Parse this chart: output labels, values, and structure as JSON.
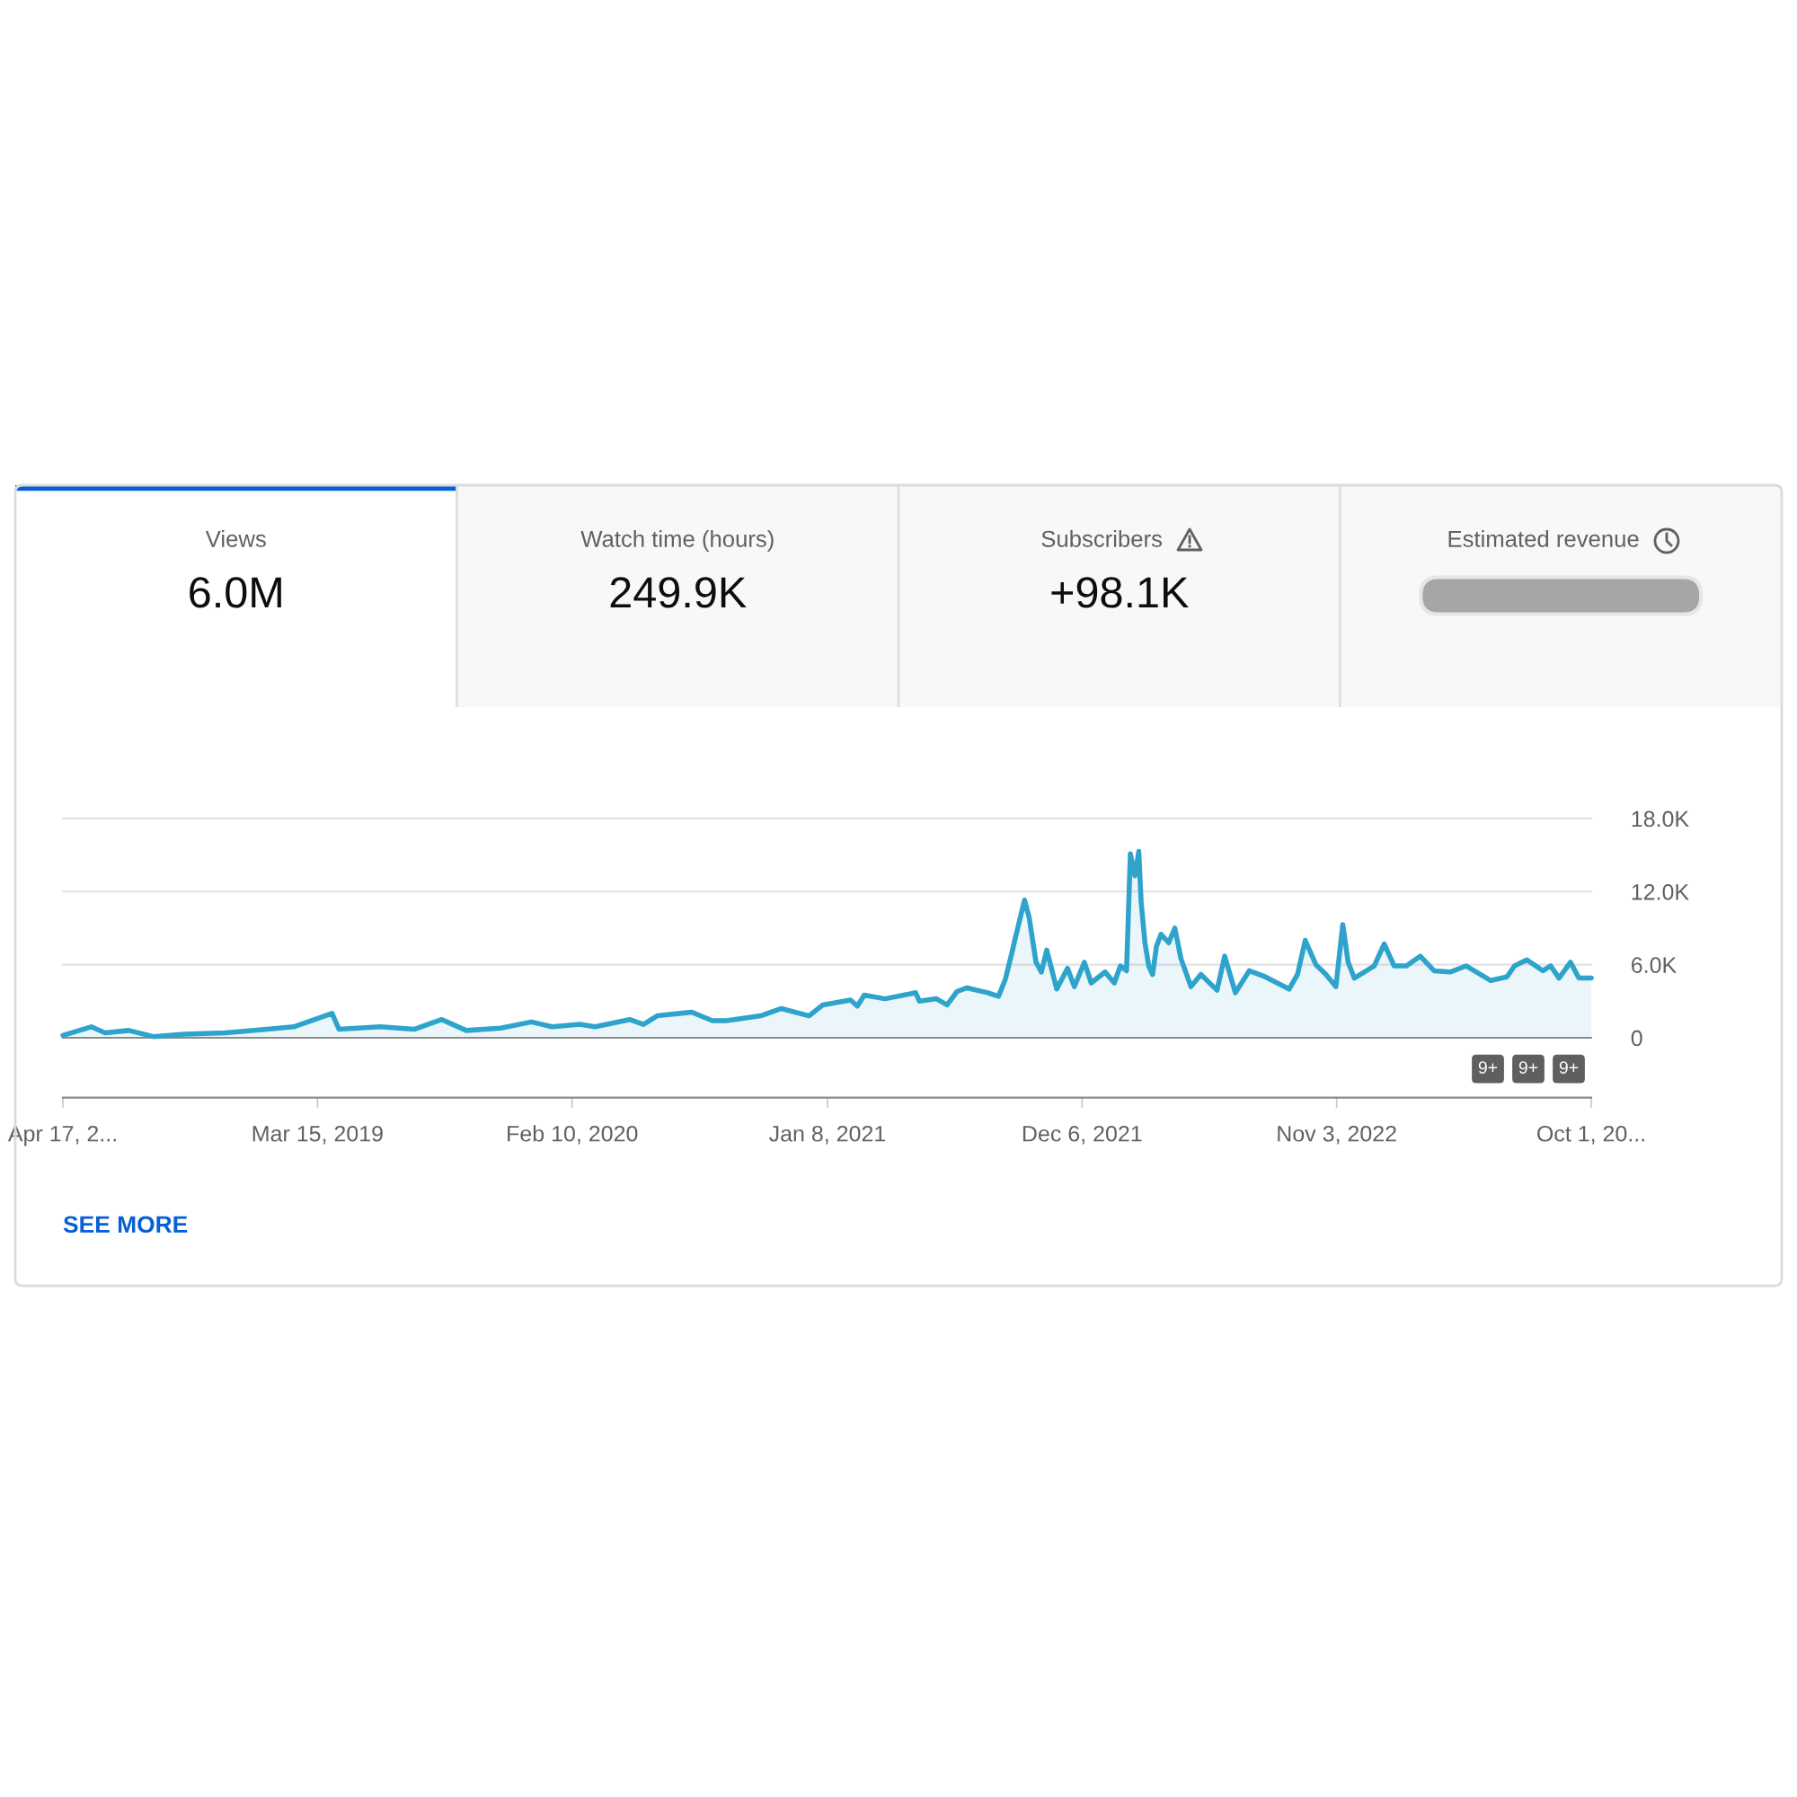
{
  "chart_data": [
    {
      "type": "other",
      "categories": [
        "Views",
        "Watch time (hours)",
        "Subscribers",
        "Estimated revenue"
      ],
      "annotations": [
        "6.0M",
        "249.9K",
        "+98.1K"
      ]
    },
    {
      "type": "area",
      "x": [
        "2018-04-17",
        "2018-05-24",
        "2018-06-11",
        "2018-07-12",
        "2018-08-13",
        "2018-09-22",
        "2018-11-15",
        "2019-01-08",
        "2019-02-12",
        "2019-04-03",
        "2019-04-12",
        "2019-06-05",
        "2019-07-19",
        "2019-08-24",
        "2019-09-25",
        "2019-11-09",
        "2019-12-19",
        "2020-01-15",
        "2020-02-20",
        "2020-03-11",
        "2020-04-25",
        "2020-05-13",
        "2020-05-31",
        "2020-07-15",
        "2020-08-11",
        "2020-08-29",
        "2020-10-13",
        "2020-11-09",
        "2020-12-15",
        "2021-01-02",
        "2021-02-07",
        "2021-02-16",
        "2021-02-25",
        "2021-03-24",
        "2021-05-03",
        "2021-05-08",
        "2021-05-30",
        "2021-06-13",
        "2021-06-26",
        "2021-07-09",
        "2021-08-05",
        "2021-08-19",
        "2021-08-28",
        "2021-09-06",
        "2021-09-10",
        "2021-09-22",
        "2021-09-28",
        "2021-10-07",
        "2021-10-14",
        "2021-10-21",
        "2021-11-03",
        "2021-11-17",
        "2021-11-26",
        "2021-12-09",
        "2021-12-18",
        "2022-01-05",
        "2022-01-17",
        "2022-01-25",
        "2022-02-02",
        "2022-02-07",
        "2022-02-13",
        "2022-02-18",
        "2022-02-21",
        "2022-02-26",
        "2022-03-03",
        "2022-03-08",
        "2022-03-13",
        "2022-03-19",
        "2022-03-29",
        "2022-04-06",
        "2022-04-14",
        "2022-04-27",
        "2022-05-10",
        "2022-05-31",
        "2022-06-10",
        "2022-06-24",
        "2022-07-12",
        "2022-08-02",
        "2022-09-02",
        "2022-09-13",
        "2022-09-23",
        "2022-10-07",
        "2022-10-20",
        "2022-11-02",
        "2022-11-11",
        "2022-11-18",
        "2022-11-26",
        "2022-12-09",
        "2022-12-22",
        "2023-01-04",
        "2023-01-17",
        "2023-02-02",
        "2023-02-20",
        "2023-03-10",
        "2023-03-31",
        "2023-04-21",
        "2023-05-23",
        "2023-06-13",
        "2023-06-23",
        "2023-07-09",
        "2023-07-30",
        "2023-08-09",
        "2023-08-20",
        "2023-09-04",
        "2023-09-15",
        "2023-10-01"
      ],
      "series": [
        {
          "color": "#2ea3cb",
          "values": [
            200,
            900,
            400,
            600,
            100,
            300,
            400,
            700,
            900,
            2000,
            700,
            900,
            700,
            1500,
            600,
            800,
            1300,
            900,
            1100,
            900,
            1500,
            1100,
            1800,
            2100,
            1400,
            1400,
            1800,
            2400,
            1800,
            2700,
            3100,
            2600,
            3500,
            3200,
            3700,
            3000,
            3200,
            2700,
            3800,
            4100,
            3700,
            3400,
            4800,
            7100,
            8200,
            11300,
            9900,
            6200,
            5400,
            7200,
            4000,
            5700,
            4200,
            6200,
            4500,
            5400,
            4500,
            5900,
            5500,
            15100,
            13300,
            15300,
            11200,
            7800,
            5900,
            5200,
            7500,
            8500,
            7800,
            9000,
            6500,
            4200,
            5200,
            3900,
            6700,
            3700,
            5500,
            5000,
            4000,
            5200,
            8000,
            6000,
            5200,
            4200,
            9300,
            6200,
            4900,
            5400,
            5900,
            7700,
            5900,
            5900,
            6700,
            5500,
            5400,
            5900,
            4700,
            5000,
            5900,
            6400,
            5500,
            5900,
            4900,
            6200,
            4900,
            4900
          ]
        }
      ],
      "xlim": [
        "2018-04-17",
        "2023-10-01"
      ],
      "xticks": [
        {
          "value": "2018-04-17",
          "label": "Apr 17, 2..."
        },
        {
          "value": "2019-03-15",
          "label": "Mar 15, 2019"
        },
        {
          "value": "2020-02-10",
          "label": "Feb 10, 2020"
        },
        {
          "value": "2021-01-08",
          "label": "Jan 8, 2021"
        },
        {
          "value": "2021-12-06",
          "label": "Dec 6, 2021"
        },
        {
          "value": "2022-11-03",
          "label": "Nov 3, 2022"
        },
        {
          "value": "2023-10-01",
          "label": "Oct 1, 20..."
        }
      ],
      "ylim": [
        0,
        18000
      ],
      "yticks": [
        0,
        {
          "value": 6000,
          "label": "6.0K"
        },
        {
          "value": 12000,
          "label": "12.0K"
        },
        {
          "value": 18000,
          "label": "18.0K"
        }
      ],
      "grid": "y",
      "annotations": [
        "9+",
        "9+",
        "9+",
        "SEE MORE"
      ]
    }
  ]
}
